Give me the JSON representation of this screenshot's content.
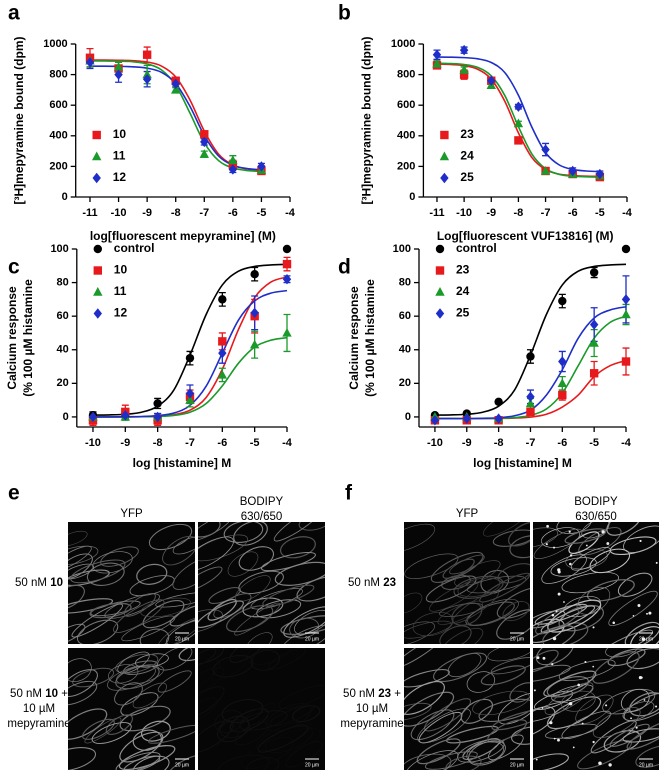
{
  "chart_data": [
    {
      "type": "scatter",
      "panel": "a",
      "xlabel": "log[fluorescent mepyramine] (M)",
      "ylabel": [
        "[³H]mepyramine bound (dpm)"
      ],
      "xlim": [
        -11.5,
        -4
      ],
      "xticks": [
        -11,
        -10,
        -9,
        -8,
        -7,
        -6,
        -5,
        -4
      ],
      "ylim": [
        0,
        1000
      ],
      "yticks": [
        0,
        200,
        400,
        600,
        800,
        1000
      ],
      "legend": "lower left",
      "x": [
        -11,
        -10,
        -9,
        -8,
        -7,
        -6,
        -5
      ],
      "fit_x": [
        -11,
        -10.5,
        -10,
        -9.5,
        -9,
        -8.5,
        -8,
        -7.5,
        -7,
        -6.5,
        -6,
        -5.5,
        -5
      ],
      "series": [
        {
          "name": "10",
          "color": "#e8191c",
          "marker": "square",
          "values": [
            910,
            840,
            930,
            760,
            410,
            210,
            170
          ],
          "errors": [
            60,
            40,
            50,
            15,
            20,
            30,
            15
          ],
          "fit": [
            895,
            895,
            893.7,
            891,
            882,
            856,
            785,
            634,
            431,
            280,
            209,
            183,
            174
          ]
        },
        {
          "name": "11",
          "color": "#1a9a2a",
          "marker": "triangle",
          "values": [
            890,
            850,
            800,
            700,
            280,
            240,
            175
          ],
          "errors": [
            40,
            30,
            60,
            15,
            20,
            30,
            20
          ],
          "fit": [
            890,
            889,
            888,
            884,
            870,
            831,
            731,
            548,
            355,
            238,
            190,
            173,
            168
          ]
        },
        {
          "name": "12",
          "color": "#1f2ec9",
          "marker": "diamond",
          "values": [
            880,
            800,
            770,
            740,
            360,
            180,
            200
          ],
          "errors": [
            40,
            50,
            50,
            15,
            20,
            20,
            20
          ],
          "fit": [
            855,
            855,
            854,
            851,
            842,
            815,
            742,
            592,
            402,
            268,
            207,
            186,
            178
          ]
        }
      ]
    },
    {
      "type": "scatter",
      "panel": "b",
      "xlabel": "Log[fluorescent VUF13816] (M)",
      "ylabel": [
        "[³H]mepyramine bound (dpm)"
      ],
      "xlim": [
        -11.5,
        -4
      ],
      "xticks": [
        -11,
        -10,
        -9,
        -8,
        -7,
        -6,
        -5,
        -4
      ],
      "ylim": [
        0,
        1000
      ],
      "yticks": [
        0,
        200,
        400,
        600,
        800,
        1000
      ],
      "legend": "lower left",
      "x": [
        -11,
        -10,
        -9,
        -8,
        -7,
        -6,
        -5
      ],
      "fit_x": [
        -11,
        -10.5,
        -10,
        -9.5,
        -9,
        -8.5,
        -8,
        -7.5,
        -7,
        -6.5,
        -6,
        -5.5,
        -5
      ],
      "series": [
        {
          "name": "23",
          "color": "#e8191c",
          "marker": "square",
          "values": [
            860,
            800,
            760,
            370,
            170,
            150,
            130
          ],
          "errors": [
            20,
            30,
            20,
            15,
            15,
            15,
            20
          ],
          "fit": [
            869,
            866,
            859,
            835,
            770,
            625,
            419,
            257,
            179,
            149,
            140,
            136,
            135
          ]
        },
        {
          "name": "24",
          "color": "#1a9a2a",
          "marker": "triangle",
          "values": [
            870,
            830,
            730,
            480,
            170,
            150,
            140
          ],
          "errors": [
            20,
            20,
            20,
            15,
            20,
            20,
            20
          ],
          "fit": [
            874,
            872,
            866,
            847,
            792,
            663,
            460,
            280,
            185,
            148,
            136,
            132,
            130
          ]
        },
        {
          "name": "25",
          "color": "#1f2ec9",
          "marker": "diamond",
          "values": [
            930,
            960,
            760,
            590,
            310,
            170,
            150
          ],
          "errors": [
            30,
            20,
            20,
            15,
            40,
            20,
            20
          ],
          "fit": [
            915,
            914,
            911,
            903,
            879,
            813,
            665,
            455,
            290,
            210,
            180,
            170,
            166
          ]
        }
      ]
    },
    {
      "type": "scatter",
      "panel": "c",
      "xlabel": "log [histamine] M",
      "ylabel": [
        "Calcium response",
        "(% 100 µM histamine"
      ],
      "xlim": [
        -10.5,
        -4
      ],
      "xticks": [
        -10,
        -9,
        -8,
        -7,
        -6,
        -5,
        -4
      ],
      "ylim": [
        -6,
        100
      ],
      "yticks": [
        0,
        20,
        40,
        60,
        80,
        100
      ],
      "legend": "upper left",
      "x": [
        -10,
        -9,
        -8,
        -7,
        -6,
        -5,
        -4
      ],
      "fit_x": [
        -10,
        -9.5,
        -9,
        -8.5,
        -8,
        -7.5,
        -7,
        -6.5,
        -6,
        -5.5,
        -5,
        -4.5,
        -4
      ],
      "series": [
        {
          "name": "control",
          "color": "#000000",
          "marker": "circle",
          "values": [
            1,
            2,
            8,
            35,
            70,
            85,
            100
          ],
          "errors": [
            2,
            2,
            3,
            4,
            4,
            4,
            1
          ],
          "fit": [
            1.1,
            1.2,
            1.6,
            2.8,
            6.4,
            16,
            36.8,
            61,
            78.6,
            86.8,
            89.6,
            90.5,
            90.9
          ]
        },
        {
          "name": "10",
          "color": "#e8191c",
          "marker": "square",
          "values": [
            -2,
            3,
            -2,
            12,
            45,
            60,
            91
          ],
          "errors": [
            3,
            4,
            3,
            4,
            5,
            10,
            4
          ],
          "fit": [
            0,
            0,
            0,
            0.1,
            0.4,
            1.3,
            4,
            11.6,
            28.4,
            52.1,
            71.1,
            80.3,
            83.3
          ]
        },
        {
          "name": "11",
          "color": "#1a9a2a",
          "marker": "triangle",
          "values": [
            0,
            0,
            0,
            10,
            25,
            43,
            50
          ],
          "errors": [
            2,
            2,
            2,
            4,
            4,
            8,
            11
          ],
          "fit": [
            0,
            0,
            0,
            0.1,
            0.3,
            0.9,
            2.8,
            8,
            18.5,
            32,
            41.6,
            45.7,
            47.2
          ]
        },
        {
          "name": "12",
          "color": "#1f2ec9",
          "marker": "diamond",
          "values": [
            0,
            1,
            0,
            14,
            38,
            62,
            82
          ],
          "errors": [
            2,
            2,
            2,
            5,
            6,
            10,
            2
          ],
          "fit": [
            0,
            0,
            0.1,
            0.2,
            0.8,
            2.3,
            6.9,
            18.3,
            38,
            57.7,
            69.1,
            73.7,
            75.2
          ]
        }
      ]
    },
    {
      "type": "scatter",
      "panel": "d",
      "xlabel": "log [histamine] M",
      "ylabel": [
        "Calcium response",
        "(% 100 µM histamine"
      ],
      "xlim": [
        -10.5,
        -4
      ],
      "xticks": [
        -10,
        -9,
        -8,
        -7,
        -6,
        -5,
        -4
      ],
      "ylim": [
        -6,
        100
      ],
      "yticks": [
        0,
        20,
        40,
        60,
        80,
        100
      ],
      "legend": "upper left",
      "x": [
        -10,
        -9,
        -8,
        -7,
        -6,
        -5,
        -4
      ],
      "fit_x": [
        -10,
        -9.5,
        -9,
        -8.5,
        -8,
        -7.5,
        -7,
        -6.5,
        -6,
        -5.5,
        -5,
        -4.5,
        -4
      ],
      "series": [
        {
          "name": "control",
          "color": "#000000",
          "marker": "circle",
          "values": [
            1,
            2,
            9,
            36,
            69,
            86,
            100
          ],
          "errors": [
            1,
            1,
            1,
            4,
            4,
            3,
            1
          ],
          "fit": [
            1.1,
            1.2,
            1.6,
            2.8,
            6.4,
            16,
            36.8,
            61,
            78.6,
            86.8,
            89.6,
            90.5,
            90.9
          ]
        },
        {
          "name": "23",
          "color": "#e8191c",
          "marker": "square",
          "values": [
            -2,
            -2,
            -2,
            3,
            13,
            26,
            33
          ],
          "errors": [
            2,
            1,
            1,
            2,
            3,
            7,
            8
          ],
          "fit": [
            -1,
            -1,
            -1,
            -1,
            -0.9,
            -0.7,
            -0.1,
            1.6,
            5.9,
            13,
            24,
            30.5,
            33.6
          ]
        },
        {
          "name": "24",
          "color": "#1a9a2a",
          "marker": "triangle",
          "values": [
            0,
            0,
            -1,
            8,
            20,
            44,
            61
          ],
          "errors": [
            1,
            1,
            1,
            3,
            4,
            8,
            6
          ],
          "fit": [
            -1,
            -1,
            -1,
            -0.9,
            -0.8,
            -0.4,
            0.9,
            4.7,
            14.2,
            30.5,
            46.9,
            56.3,
            60
          ]
        },
        {
          "name": "25",
          "color": "#1f2ec9",
          "marker": "diamond",
          "values": [
            -2,
            -1,
            -1,
            12,
            33,
            55,
            70
          ],
          "errors": [
            1,
            1,
            1,
            4,
            6,
            10,
            14
          ],
          "fit": [
            -1,
            -1,
            -1,
            -0.8,
            -0.5,
            0.7,
            4,
            13,
            28.1,
            46.9,
            58.9,
            63.7,
            65.6
          ]
        }
      ]
    }
  ],
  "image_panels": [
    {
      "panel": "e",
      "columns": [
        [
          "YFP"
        ],
        [
          "BODIPY",
          "630/650"
        ]
      ],
      "scale_bar": "20 µm",
      "rows": [
        [
          [
            {
              "text": "50 nM "
            },
            {
              "text": "10",
              "bold": true
            }
          ]
        ],
        [
          [
            {
              "text": "50 nM "
            },
            {
              "text": "10",
              "bold": true
            },
            {
              "text": " +"
            }
          ],
          [
            {
              "text": "10 µM"
            }
          ],
          [
            {
              "text": "mepyramine"
            }
          ]
        ]
      ]
    },
    {
      "panel": "f",
      "columns": [
        [
          "YFP"
        ],
        [
          "BODIPY",
          "630/650"
        ]
      ],
      "scale_bar": "20 µm",
      "rows": [
        [
          [
            {
              "text": "50 nM "
            },
            {
              "text": "23",
              "bold": true
            }
          ]
        ],
        [
          [
            {
              "text": "50 nM "
            },
            {
              "text": "23",
              "bold": true
            },
            {
              "text": " +"
            }
          ],
          [
            {
              "text": "10 µM"
            }
          ],
          [
            {
              "text": "mepyramine"
            }
          ]
        ]
      ]
    }
  ]
}
